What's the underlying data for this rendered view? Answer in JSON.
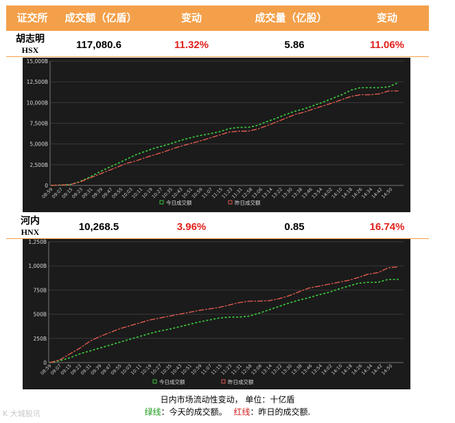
{
  "header": {
    "col_exchange": "证交所",
    "col_value": "成交额（亿盾）",
    "col_change1": "变动",
    "col_volume": "成交量（亿股）",
    "col_change2": "变动"
  },
  "hsx": {
    "name_cn": "胡志明",
    "name_code": "HSX",
    "value": "117,080.6",
    "value_change": "11.32%",
    "volume": "5.86",
    "volume_change": "11.06%"
  },
  "hnx": {
    "name_cn": "河内",
    "name_code": "HNX",
    "value": "10,268.5",
    "value_change": "3.96%",
    "volume": "0.85",
    "volume_change": "16.74%"
  },
  "footer": {
    "line1": "日内市场流动性变动，  单位：十亿盾",
    "green_label": "绿线",
    "green_text": "：今天的成交额。",
    "red_label": "红线",
    "red_text": "：昨日的成交额."
  },
  "watermark": "K 大城股讯",
  "colors": {
    "header_bg": "#f4a04a",
    "today": "#39c43a",
    "yesterday": "#e05a4f",
    "chart_bg": "#1b1b1b",
    "increase": "#e0201b"
  },
  "chart_data": [
    {
      "type": "line",
      "y_unit": "B",
      "ylim": [
        0,
        15000
      ],
      "yticks": [
        "0",
        "2,500B",
        "5,000B",
        "7,500B",
        "10,000B",
        "12,500B",
        "15,000B"
      ],
      "x_ticks": [
        "08:59",
        "09:07",
        "09:15",
        "09:23",
        "09:31",
        "09:39",
        "09:47",
        "09:55",
        "10:03",
        "10:11",
        "10:19",
        "10:27",
        "10:35",
        "10:43",
        "10:51",
        "10:59",
        "11:07",
        "11:15",
        "11:23",
        "11:31",
        "12:58",
        "13:06",
        "13:14",
        "13:22",
        "13:30",
        "13:38",
        "13:46",
        "13:54",
        "14:02",
        "14:10",
        "14:18",
        "14:26",
        "14:34",
        "14:42",
        "14:50"
      ],
      "legend": [
        "今日成交额",
        "昨日成交额"
      ],
      "series": [
        {
          "name": "今日成交额",
          "style": "dotted",
          "values": [
            0,
            50,
            100,
            450,
            950,
            1550,
            2100,
            2600,
            3150,
            3700,
            4100,
            4500,
            4800,
            5150,
            5500,
            5800,
            6050,
            6250,
            6500,
            6850,
            7000,
            7000,
            7250,
            7700,
            8100,
            8550,
            8950,
            9250,
            9650,
            10050,
            10500,
            10950,
            11500,
            11800,
            11800,
            11800,
            11900,
            12400
          ]
        },
        {
          "name": "昨日成交额",
          "style": "dashdot",
          "values": [
            0,
            50,
            100,
            400,
            850,
            1300,
            1750,
            2200,
            2650,
            2950,
            3350,
            3700,
            4050,
            4450,
            4800,
            5100,
            5400,
            5750,
            6100,
            6450,
            6550,
            6550,
            6800,
            7200,
            7650,
            8100,
            8550,
            8850,
            9250,
            9600,
            9950,
            10350,
            10750,
            10950,
            10950,
            11050,
            11400,
            11400
          ]
        }
      ]
    },
    {
      "type": "line",
      "y_unit": "B",
      "ylim": [
        0,
        1250
      ],
      "yticks": [
        "0",
        "250B",
        "500B",
        "750B",
        "1,000B",
        "1,250B"
      ],
      "x_ticks": [
        "08:59",
        "09:07",
        "09:15",
        "09:23",
        "09:31",
        "09:39",
        "09:47",
        "09:55",
        "10:03",
        "10:11",
        "10:19",
        "10:27",
        "10:35",
        "10:43",
        "10:51",
        "10:59",
        "11:07",
        "11:15",
        "11:23",
        "11:31",
        "12:58",
        "13:06",
        "13:14",
        "13:22",
        "13:30",
        "13:38",
        "13:46",
        "13:54",
        "14:02",
        "14:10",
        "14:18",
        "14:26",
        "14:34",
        "14:42",
        "14:50"
      ],
      "legend": [
        "今日成交额",
        "昨日成交额"
      ],
      "series": [
        {
          "name": "今日成交额",
          "style": "dotted",
          "values": [
            0,
            20,
            50,
            90,
            120,
            150,
            180,
            210,
            240,
            270,
            300,
            325,
            345,
            370,
            395,
            420,
            440,
            460,
            470,
            470,
            480,
            510,
            545,
            580,
            615,
            645,
            670,
            700,
            725,
            760,
            790,
            820,
            830,
            830,
            860,
            860
          ]
        },
        {
          "name": "昨日成交额",
          "style": "dashdot",
          "values": [
            0,
            30,
            90,
            150,
            220,
            270,
            310,
            350,
            380,
            410,
            440,
            460,
            480,
            500,
            520,
            540,
            555,
            570,
            595,
            620,
            635,
            635,
            640,
            660,
            690,
            730,
            770,
            790,
            810,
            830,
            850,
            880,
            915,
            930,
            980,
            990
          ]
        }
      ]
    }
  ]
}
